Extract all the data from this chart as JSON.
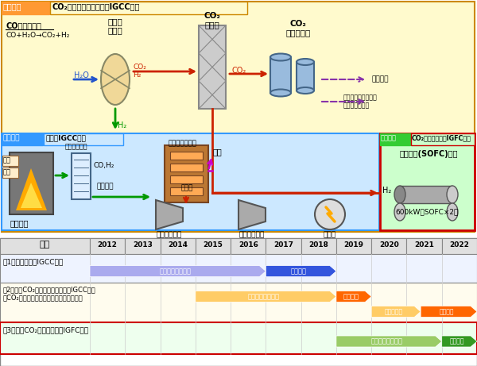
{
  "stage2_bg": "#fffacd",
  "stage1_bg": "#cce8ff",
  "stage3_bg": "#ccffcc",
  "stage2_header_bg": "#ff9933",
  "stage1_header_bg": "#3399ff",
  "stage3_header_bg": "#33cc33",
  "stage2_label": "第２段階",
  "stage2_title": "CO₂分離・回収型酸素吹IGCC実証",
  "stage1_label": "第１段階",
  "stage1_title": "酸素吹IGCC実証",
  "stage3_label": "第３段階",
  "stage3_title": "CO₂分離・回収型IGFC実証",
  "row1_label": "第1段階：酸素吹IGCC実証",
  "row1_design_color": "#aaaaee",
  "row1_demo_color": "#3355dd",
  "row2_label1": "第2段階：CO₂分離・回収型酸素吹IGCC実証",
  "row2_label2": "（CO₂分離回収・液化プロセス実証含む）",
  "row2_design_color": "#ffcc66",
  "row2_demo_color": "#ff6600",
  "row3_label": "第3段階：CO₂分離・回収型IGFC実証",
  "row3_design_color": "#99cc66",
  "row3_demo_color": "#339922"
}
